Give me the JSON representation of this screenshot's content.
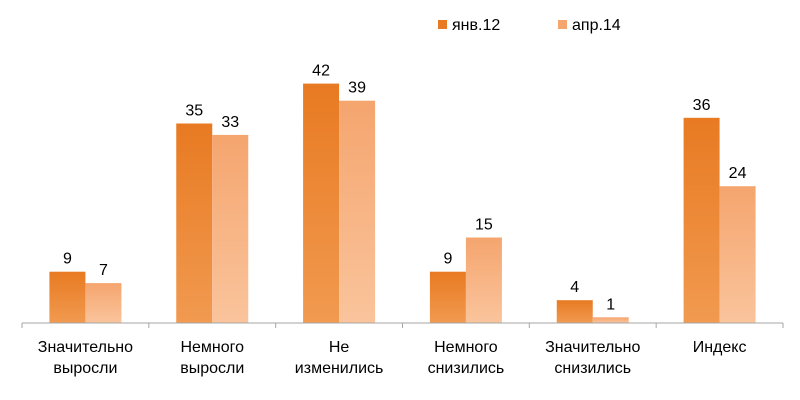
{
  "chart_data": {
    "type": "bar",
    "title": "",
    "xlabel": "",
    "ylabel": "",
    "ylim": [
      0,
      50
    ],
    "grid": false,
    "legend_position": "top-right",
    "categories": [
      [
        "Значительно",
        "выросли"
      ],
      [
        "Немного",
        "выросли"
      ],
      [
        "Не",
        "изменились"
      ],
      [
        "Немного",
        "снизились"
      ],
      [
        "Значительно",
        "снизились"
      ],
      [
        "Индекс"
      ]
    ],
    "series": [
      {
        "name": "янв.12",
        "values": [
          9,
          35,
          42,
          9,
          4,
          36
        ],
        "color": "#E87A22",
        "color_light": "#F19A50"
      },
      {
        "name": "апр.14",
        "values": [
          7,
          33,
          39,
          15,
          1,
          24
        ],
        "color": "#F5A56E",
        "color_light": "#FAC49C"
      }
    ]
  }
}
